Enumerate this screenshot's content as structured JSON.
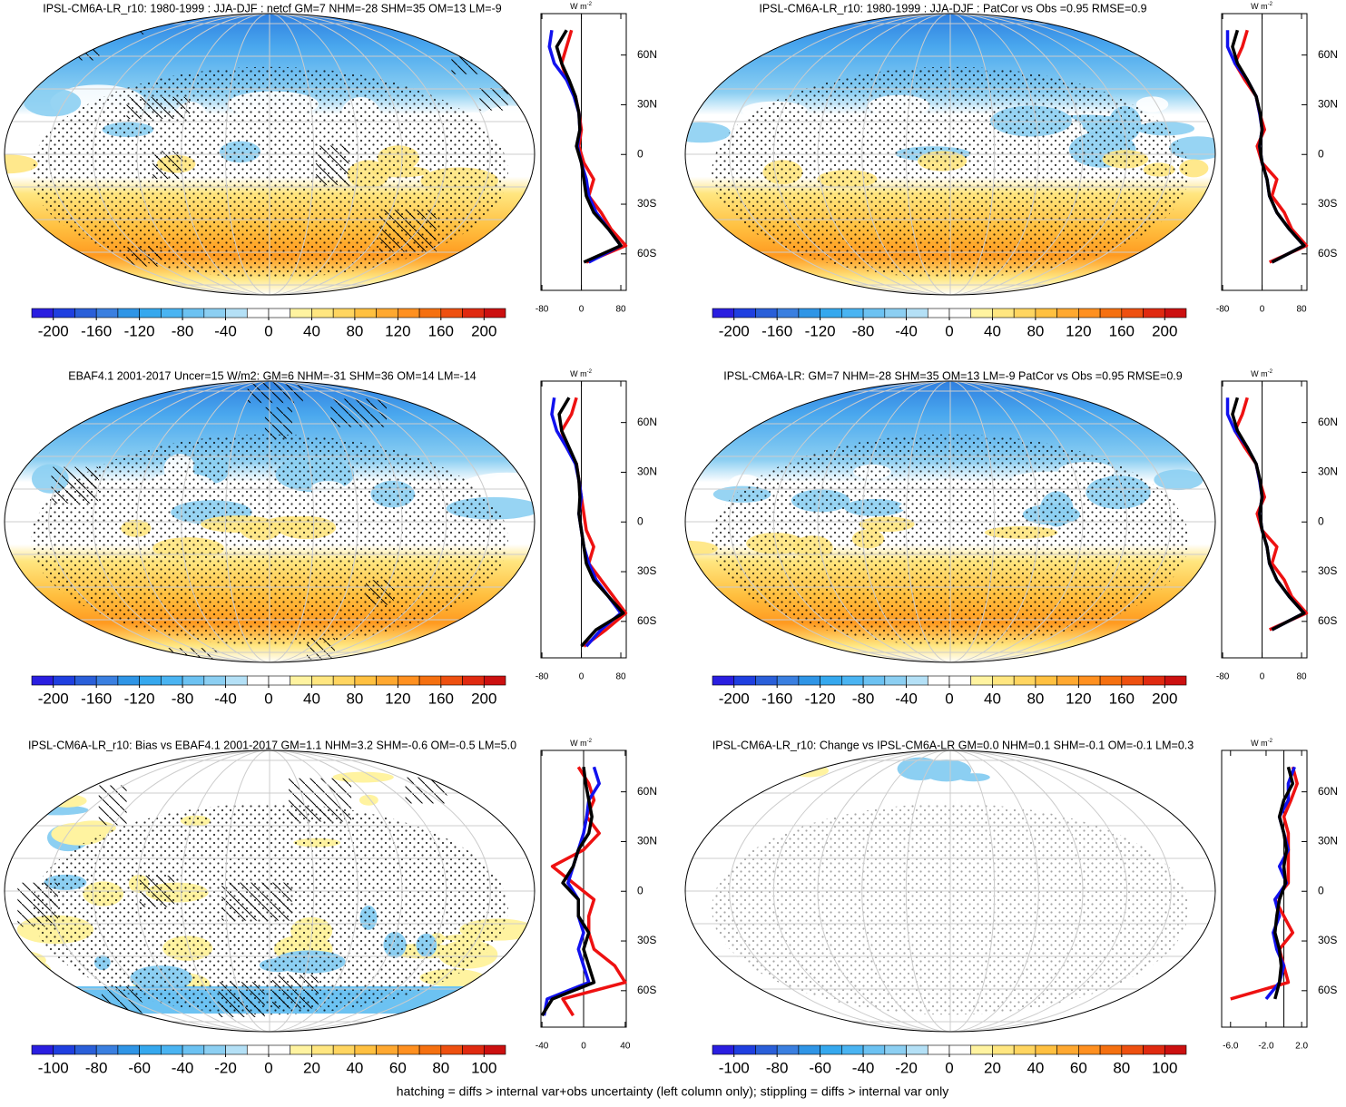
{
  "chart_data": [
    {
      "type": "map",
      "title": "IPSL-CM6A-LR_r10: 1980-1999 : JJA-DJF : netcf GM=7 NHM=-28 SHM=35 OM=13 LM=-9",
      "hatching": true,
      "colorbar": {
        "lim": [
          -220,
          220
        ],
        "ticks": [
          -200,
          -160,
          -120,
          -80,
          -40,
          0,
          40,
          80,
          120,
          160,
          200
        ],
        "colors": [
          "#2a1ee0",
          "#1f3fe0",
          "#2a5fd9",
          "#3a7fe0",
          "#2f95e6",
          "#35a8ee",
          "#4ab4f2",
          "#6cc2f2",
          "#8ccff2",
          "#b4e0f6",
          "#ffffff",
          "#ffffff",
          "#fff3a0",
          "#ffe680",
          "#ffd560",
          "#ffc040",
          "#ffa830",
          "#ff9020",
          "#f57010",
          "#ee5010",
          "#e02a10",
          "#cc1010"
        ]
      },
      "profile": {
        "type": "line",
        "units": "W m",
        "units_exp": "-2",
        "xlim": [
          -82,
          91
        ],
        "xticks": [
          -80,
          0,
          80
        ],
        "ylim": [
          -82,
          85
        ],
        "yticks": [
          {
            "value": 60,
            "label": "60N"
          },
          {
            "value": 30,
            "label": "30N"
          },
          0,
          {
            "value": -30,
            "label": "30S"
          },
          {
            "value": -60,
            "label": "60S"
          }
        ],
        "y": [
          75,
          65,
          55,
          45,
          35,
          25,
          15,
          5,
          -5,
          -15,
          -25,
          -35,
          -45,
          -55,
          -65,
          -75
        ],
        "series": [
          {
            "color": "#ee1111",
            "values": [
              -20,
              -30,
              -40,
              -30,
              -12,
              -5,
              0,
              -5,
              5,
              25,
              15,
              40,
              60,
              90,
              10,
              null
            ]
          },
          {
            "color": "#1111ee",
            "values": [
              -60,
              -65,
              -55,
              -30,
              -15,
              -5,
              -3,
              -8,
              0,
              10,
              15,
              30,
              55,
              80,
              15,
              null
            ]
          },
          {
            "color": "#000000",
            "values": [
              -30,
              -50,
              -40,
              -25,
              -12,
              -5,
              -3,
              -10,
              0,
              5,
              10,
              25,
              55,
              80,
              5,
              null
            ]
          }
        ]
      }
    },
    {
      "type": "map",
      "title": "IPSL-CM6A-LR_r10: 1980-1999 : JJA-DJF : PatCor vs Obs =0.95 RMSE=0.9",
      "hatching": false,
      "colorbar": {
        "lim": [
          -220,
          220
        ],
        "ticks": [
          -200,
          -160,
          -120,
          -80,
          -40,
          0,
          40,
          80,
          120,
          160,
          200
        ],
        "colors": [
          "#2a1ee0",
          "#1f3fe0",
          "#2a5fd9",
          "#3a7fe0",
          "#2f95e6",
          "#35a8ee",
          "#4ab4f2",
          "#6cc2f2",
          "#8ccff2",
          "#b4e0f6",
          "#ffffff",
          "#ffffff",
          "#fff3a0",
          "#ffe680",
          "#ffd560",
          "#ffc040",
          "#ffa830",
          "#ff9020",
          "#f57010",
          "#ee5010",
          "#e02a10",
          "#cc1010"
        ]
      },
      "profile": {
        "type": "line",
        "units": "W m",
        "units_exp": "-2",
        "xlim": [
          -82,
          91
        ],
        "xticks": [
          -80,
          0,
          80
        ],
        "ylim": [
          -82,
          85
        ],
        "yticks": [
          {
            "value": 60,
            "label": "60N"
          },
          {
            "value": 30,
            "label": "30N"
          },
          0,
          {
            "value": -30,
            "label": "30S"
          },
          {
            "value": -60,
            "label": "60S"
          }
        ],
        "y": [
          75,
          65,
          55,
          45,
          35,
          25,
          15,
          5,
          -5,
          -15,
          -25,
          -35,
          -45,
          -55,
          -65,
          -75
        ],
        "series": [
          {
            "color": "#ee1111",
            "values": [
              -30,
              -40,
              -55,
              -35,
              -12,
              -5,
              5,
              -10,
              0,
              30,
              20,
              45,
              60,
              90,
              15,
              null
            ]
          },
          {
            "color": "#1111ee",
            "values": [
              -70,
              -70,
              -55,
              -30,
              -12,
              -5,
              0,
              -5,
              0,
              10,
              15,
              30,
              55,
              85,
              20,
              null
            ]
          },
          {
            "color": "#000000",
            "values": [
              -50,
              -60,
              -50,
              -30,
              -12,
              -4,
              0,
              -5,
              0,
              10,
              15,
              30,
              55,
              85,
              20,
              null
            ]
          }
        ]
      }
    },
    {
      "type": "map",
      "title": "EBAF4.1 2001-2017 Uncer=15 W/m2: GM=6 NHM=-31 SHM=36 OM=14 LM=-14",
      "hatching": true,
      "colorbar": {
        "lim": [
          -220,
          220
        ],
        "ticks": [
          -200,
          -160,
          -120,
          -80,
          -40,
          0,
          40,
          80,
          120,
          160,
          200
        ],
        "colors": [
          "#2a1ee0",
          "#1f3fe0",
          "#2a5fd9",
          "#3a7fe0",
          "#2f95e6",
          "#35a8ee",
          "#4ab4f2",
          "#6cc2f2",
          "#8ccff2",
          "#b4e0f6",
          "#ffffff",
          "#ffffff",
          "#fff3a0",
          "#ffe680",
          "#ffd560",
          "#ffc040",
          "#ffa830",
          "#ff9020",
          "#f57010",
          "#ee5010",
          "#e02a10",
          "#cc1010"
        ]
      },
      "profile": {
        "type": "line",
        "units": "W m",
        "units_exp": "-2",
        "xlim": [
          -82,
          91
        ],
        "xticks": [
          -80,
          0,
          80
        ],
        "ylim": [
          -82,
          85
        ],
        "yticks": [
          {
            "value": 60,
            "label": "60N"
          },
          {
            "value": 30,
            "label": "30N"
          },
          0,
          {
            "value": -30,
            "label": "30S"
          },
          {
            "value": -60,
            "label": "60S"
          }
        ],
        "y": [
          75,
          65,
          55,
          45,
          35,
          25,
          15,
          5,
          -5,
          -15,
          -25,
          -35,
          -45,
          -55,
          -65,
          -75
        ],
        "series": [
          {
            "color": "#ee1111",
            "values": [
              -10,
              -20,
              -40,
              -30,
              -10,
              -5,
              0,
              5,
              10,
              25,
              15,
              40,
              65,
              90,
              50,
              5
            ]
          },
          {
            "color": "#1111ee",
            "values": [
              -55,
              -60,
              -50,
              -30,
              -12,
              -5,
              0,
              -5,
              0,
              5,
              15,
              30,
              55,
              80,
              40,
              10
            ]
          },
          {
            "color": "#000000",
            "values": [
              -25,
              -45,
              -40,
              -25,
              -10,
              -5,
              -3,
              -5,
              0,
              5,
              10,
              25,
              55,
              85,
              30,
              0
            ]
          }
        ]
      }
    },
    {
      "type": "map",
      "title": "IPSL-CM6A-LR: GM=7 NHM=-28 SHM=35 OM=13 LM=-9 PatCor vs Obs =0.95 RMSE=0.9",
      "hatching": false,
      "colorbar": {
        "lim": [
          -220,
          220
        ],
        "ticks": [
          -200,
          -160,
          -120,
          -80,
          -40,
          0,
          40,
          80,
          120,
          160,
          200
        ],
        "colors": [
          "#2a1ee0",
          "#1f3fe0",
          "#2a5fd9",
          "#3a7fe0",
          "#2f95e6",
          "#35a8ee",
          "#4ab4f2",
          "#6cc2f2",
          "#8ccff2",
          "#b4e0f6",
          "#ffffff",
          "#ffffff",
          "#fff3a0",
          "#ffe680",
          "#ffd560",
          "#ffc040",
          "#ffa830",
          "#ff9020",
          "#f57010",
          "#ee5010",
          "#e02a10",
          "#cc1010"
        ]
      },
      "profile": {
        "type": "line",
        "units": "W m",
        "units_exp": "-2",
        "xlim": [
          -82,
          91
        ],
        "xticks": [
          -80,
          0,
          80
        ],
        "ylim": [
          -82,
          85
        ],
        "yticks": [
          {
            "value": 60,
            "label": "60N"
          },
          {
            "value": 30,
            "label": "30N"
          },
          0,
          {
            "value": -30,
            "label": "30S"
          },
          {
            "value": -60,
            "label": "60S"
          }
        ],
        "y": [
          75,
          65,
          55,
          45,
          35,
          25,
          15,
          5,
          -5,
          -15,
          -25,
          -35,
          -45,
          -55,
          -65,
          -75
        ],
        "series": [
          {
            "color": "#ee1111",
            "values": [
              -30,
              -40,
              -55,
              -35,
              -12,
              -5,
              5,
              -10,
              0,
              30,
              20,
              45,
              60,
              90,
              15,
              null
            ]
          },
          {
            "color": "#1111ee",
            "values": [
              -70,
              -70,
              -55,
              -30,
              -12,
              -5,
              0,
              -5,
              0,
              10,
              15,
              30,
              55,
              85,
              20,
              null
            ]
          },
          {
            "color": "#000000",
            "values": [
              -50,
              -60,
              -50,
              -30,
              -12,
              -4,
              0,
              -5,
              0,
              10,
              15,
              30,
              55,
              85,
              20,
              null
            ]
          }
        ]
      }
    },
    {
      "type": "map",
      "title": "IPSL-CM6A-LR_r10: Bias vs EBAF4.1 2001-2017 GM=1.1 NHM=3.2 SHM=-0.6 OM=-0.5 LM=5.0",
      "hatching": true,
      "colorbar": {
        "lim": [
          -110,
          110
        ],
        "ticks": [
          -100,
          -80,
          -60,
          -40,
          -20,
          0,
          20,
          40,
          60,
          80,
          100
        ],
        "colors": [
          "#2a1ee0",
          "#1f3fe0",
          "#2a5fd9",
          "#3a7fe0",
          "#2f95e6",
          "#35a8ee",
          "#4ab4f2",
          "#6cc2f2",
          "#8ccff2",
          "#b4e0f6",
          "#ffffff",
          "#ffffff",
          "#fff3a0",
          "#ffe680",
          "#ffd560",
          "#ffc040",
          "#ffa830",
          "#ff9020",
          "#f57010",
          "#ee5010",
          "#e02a10",
          "#cc1010"
        ]
      },
      "profile": {
        "type": "line",
        "units": "W m",
        "units_exp": "-2",
        "xlim": [
          -41,
          41
        ],
        "xticks": [
          -40,
          0,
          40
        ],
        "ylim": [
          -82,
          85
        ],
        "yticks": [
          {
            "value": 60,
            "label": "60N"
          },
          {
            "value": 30,
            "label": "30N"
          },
          0,
          {
            "value": -30,
            "label": "30S"
          },
          {
            "value": -60,
            "label": "60S"
          }
        ],
        "y": [
          75,
          65,
          55,
          45,
          35,
          25,
          15,
          5,
          -5,
          -15,
          -25,
          -35,
          -45,
          -55,
          -65,
          -75
        ],
        "series": [
          {
            "color": "#ee1111",
            "values": [
              -5,
              5,
              10,
              3,
              15,
              0,
              -30,
              -10,
              10,
              5,
              5,
              10,
              30,
              40,
              -20,
              -10
            ]
          },
          {
            "color": "#1111ee",
            "values": [
              10,
              15,
              5,
              3,
              0,
              -5,
              -10,
              -15,
              -5,
              -5,
              0,
              -5,
              0,
              5,
              -35,
              -38
            ]
          },
          {
            "color": "#000000",
            "values": [
              0,
              2,
              5,
              8,
              5,
              -5,
              -10,
              -20,
              -5,
              -5,
              5,
              0,
              5,
              10,
              -30,
              -40
            ]
          }
        ]
      }
    },
    {
      "type": "map",
      "title": "IPSL-CM6A-LR_r10: Change vs IPSL-CM6A-LR GM=0.0 NHM=0.1 SHM=-0.1 OM=-0.1 LM=0.3",
      "hatching": false,
      "colorbar": {
        "lim": [
          -110,
          110
        ],
        "ticks": [
          -100,
          -80,
          -60,
          -40,
          -20,
          0,
          20,
          40,
          60,
          80,
          100
        ],
        "colors": [
          "#2a1ee0",
          "#1f3fe0",
          "#2a5fd9",
          "#3a7fe0",
          "#2f95e6",
          "#35a8ee",
          "#4ab4f2",
          "#6cc2f2",
          "#8ccff2",
          "#b4e0f6",
          "#ffffff",
          "#ffffff",
          "#fff3a0",
          "#ffe680",
          "#ffd560",
          "#ffc040",
          "#ffa830",
          "#ff9020",
          "#f57010",
          "#ee5010",
          "#e02a10",
          "#cc1010"
        ]
      },
      "profile": {
        "type": "line",
        "units": "W m",
        "units_exp": "-2",
        "xlim": [
          -7,
          2.6
        ],
        "xticks": [
          {
            "value": -6,
            "label": "-6.0"
          },
          {
            "value": -2,
            "label": "-2.0"
          },
          {
            "value": 2,
            "label": "2.0"
          }
        ],
        "ylim": [
          -82,
          85
        ],
        "yticks": [
          {
            "value": 60,
            "label": "60N"
          },
          {
            "value": 30,
            "label": "30N"
          },
          0,
          {
            "value": -30,
            "label": "30S"
          },
          {
            "value": -60,
            "label": "60S"
          }
        ],
        "y": [
          75,
          65,
          55,
          45,
          35,
          25,
          15,
          5,
          -5,
          -15,
          -25,
          -35,
          -45,
          -55,
          -65,
          -75
        ],
        "series": [
          {
            "color": "#ee1111",
            "values": [
              1,
              1.5,
              0.8,
              0,
              0.5,
              0.5,
              0.5,
              0.5,
              -1,
              0,
              1,
              -0.5,
              0,
              0.5,
              -6,
              null
            ]
          },
          {
            "color": "#1111ee",
            "values": [
              1.2,
              0.5,
              0.5,
              -0.5,
              0,
              0.5,
              -0.5,
              0.3,
              -1,
              -0.5,
              -1.2,
              -0.8,
              0,
              -0.5,
              -2,
              null
            ]
          },
          {
            "color": "#000000",
            "values": [
              0.5,
              1,
              0,
              -0.5,
              0,
              0.3,
              0,
              0.2,
              -0.5,
              -0.8,
              -1,
              -0.5,
              -0.3,
              -0.5,
              -1,
              null
            ]
          }
        ]
      }
    }
  ],
  "footnote": "hatching = diffs > internal var+obs uncertainty (left column only); stippling = diffs > internal var only"
}
